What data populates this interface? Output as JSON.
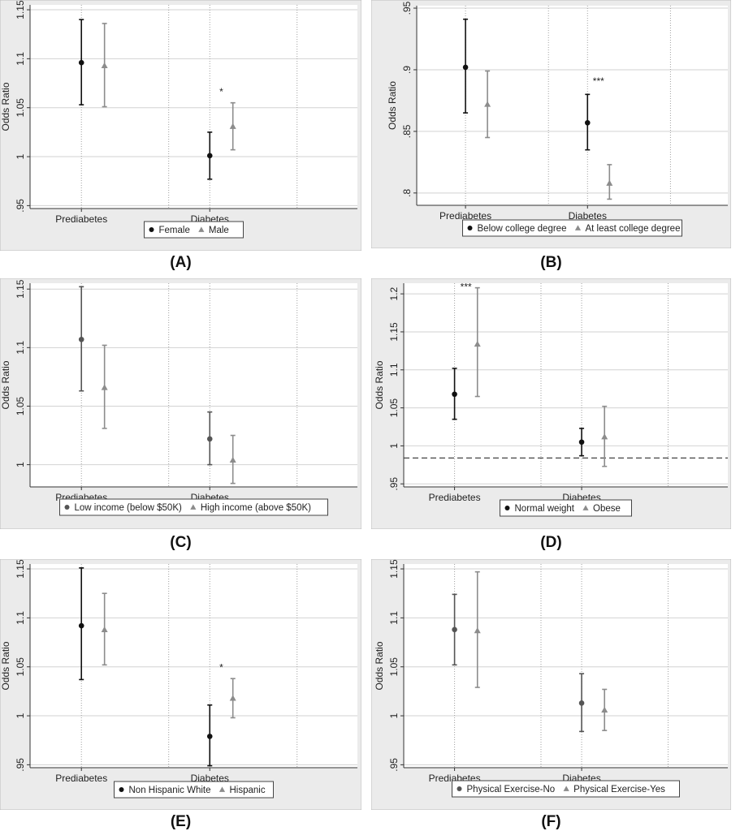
{
  "chart_data": [
    {
      "panel": "(A)",
      "type": "scatter",
      "subtype": "point-estimate-with-95ci",
      "ylabel": "Odds Ratio",
      "yticks": [
        0.95,
        1,
        1.05,
        1.1,
        1.15
      ],
      "ytick_labels": [
        ".95",
        "1",
        "1.05",
        "1.1",
        "1.15"
      ],
      "ylim": [
        0.947,
        1.155
      ],
      "categories": [
        "Prediabetes",
        "Diabetes"
      ],
      "series": [
        {
          "name": "Female",
          "marker": "circle",
          "color": "#111111",
          "values": [
            1.096,
            1.001
          ],
          "lower": [
            1.053,
            0.977
          ],
          "upper": [
            1.14,
            1.025
          ]
        },
        {
          "name": "Male",
          "marker": "triangle",
          "color": "#8c8c8c",
          "values": [
            1.093,
            1.031
          ],
          "lower": [
            1.051,
            1.007
          ],
          "upper": [
            1.136,
            1.055
          ]
        }
      ],
      "annotations": [
        {
          "category": "Diabetes",
          "text": "*",
          "y": 1.063
        }
      ],
      "reference_line": null
    },
    {
      "panel": "(B)",
      "type": "scatter",
      "subtype": "point-estimate-with-95ci",
      "ylabel": "Odds Ratio",
      "yticks": [
        0.8,
        0.85,
        0.9,
        0.95
      ],
      "ytick_labels": [
        ".8",
        ".85",
        ".9",
        ".95"
      ],
      "ylim": [
        0.79,
        0.952
      ],
      "categories": [
        "Prediabetes",
        "Diabetes"
      ],
      "series": [
        {
          "name": "Below college degree",
          "marker": "circle",
          "color": "#111111",
          "values": [
            0.902,
            0.857
          ],
          "lower": [
            0.865,
            0.835
          ],
          "upper": [
            0.941,
            0.88
          ]
        },
        {
          "name": "At least college degree",
          "marker": "triangle",
          "color": "#8c8c8c",
          "values": [
            0.872,
            0.808
          ],
          "lower": [
            0.845,
            0.795
          ],
          "upper": [
            0.899,
            0.823
          ]
        }
      ],
      "annotations": [
        {
          "category": "Diabetes",
          "text": "***",
          "y": 0.888
        }
      ],
      "reference_line": null
    },
    {
      "panel": "(C)",
      "type": "scatter",
      "subtype": "point-estimate-with-95ci",
      "ylabel": "Odds Ratio",
      "yticks": [
        1,
        1.05,
        1.1,
        1.15
      ],
      "ytick_labels": [
        "1",
        "1.05",
        "1.1",
        "1.15"
      ],
      "ylim": [
        0.981,
        1.155
      ],
      "categories": [
        "Prediabetes",
        "Diabetes"
      ],
      "series": [
        {
          "name": "Low income (below $50K)",
          "marker": "circle",
          "color": "#555555",
          "values": [
            1.107,
            1.022
          ],
          "lower": [
            1.063,
            1.0
          ],
          "upper": [
            1.152,
            1.045
          ]
        },
        {
          "name": "High income (above $50K)",
          "marker": "triangle",
          "color": "#8c8c8c",
          "values": [
            1.066,
            1.004
          ],
          "lower": [
            1.031,
            0.984
          ],
          "upper": [
            1.102,
            1.025
          ]
        }
      ],
      "annotations": [],
      "reference_line": null
    },
    {
      "panel": "(D)",
      "type": "scatter",
      "subtype": "point-estimate-with-95ci",
      "ylabel": "Odds Ratio",
      "yticks": [
        0.95,
        1,
        1.05,
        1.1,
        1.15,
        1.2
      ],
      "ytick_labels": [
        ".95",
        "1",
        "1.05",
        "1.1",
        "1.15",
        "1.2"
      ],
      "ylim": [
        0.946,
        1.214
      ],
      "categories": [
        "Prediabetes",
        "Diabetes"
      ],
      "series": [
        {
          "name": "Normal weight",
          "marker": "circle",
          "color": "#111111",
          "values": [
            1.068,
            1.005
          ],
          "lower": [
            1.035,
            0.987
          ],
          "upper": [
            1.102,
            1.023
          ]
        },
        {
          "name": "Obese",
          "marker": "triangle",
          "color": "#8c8c8c",
          "values": [
            1.134,
            1.012
          ],
          "lower": [
            1.065,
            0.973
          ],
          "upper": [
            1.208,
            1.052
          ]
        }
      ],
      "annotations": [
        {
          "category": "Prediabetes",
          "text": "***",
          "y": 1.205
        }
      ],
      "reference_line": {
        "y": 0.984,
        "style": "dashed"
      }
    },
    {
      "panel": "(E)",
      "type": "scatter",
      "subtype": "point-estimate-with-95ci",
      "ylabel": "Odds Ratio",
      "yticks": [
        0.95,
        1,
        1.05,
        1.1,
        1.15
      ],
      "ytick_labels": [
        ".95",
        "1",
        "1.05",
        "1.1",
        "1.15"
      ],
      "ylim": [
        0.947,
        1.155
      ],
      "categories": [
        "Prediabetes",
        "Diabetes"
      ],
      "series": [
        {
          "name": "Non Hispanic White",
          "marker": "circle",
          "color": "#111111",
          "values": [
            1.092,
            0.979
          ],
          "lower": [
            1.037,
            0.949
          ],
          "upper": [
            1.151,
            1.011
          ]
        },
        {
          "name": "Hispanic",
          "marker": "triangle",
          "color": "#8c8c8c",
          "values": [
            1.088,
            1.018
          ],
          "lower": [
            1.052,
            0.998
          ],
          "upper": [
            1.125,
            1.038
          ]
        }
      ],
      "annotations": [
        {
          "category": "Diabetes",
          "text": "*",
          "y": 1.046
        }
      ],
      "reference_line": null
    },
    {
      "panel": "(F)",
      "type": "scatter",
      "subtype": "point-estimate-with-95ci",
      "ylabel": "Odds Ratio",
      "yticks": [
        0.95,
        1,
        1.05,
        1.1,
        1.15
      ],
      "ytick_labels": [
        ".95",
        "1",
        "1.05",
        "1.1",
        "1.15"
      ],
      "ylim": [
        0.947,
        1.155
      ],
      "categories": [
        "Prediabetes",
        "Diabetes"
      ],
      "series": [
        {
          "name": "Physical Exercise-No",
          "marker": "circle",
          "color": "#555555",
          "values": [
            1.088,
            1.013
          ],
          "lower": [
            1.052,
            0.984
          ],
          "upper": [
            1.124,
            1.043
          ]
        },
        {
          "name": "Physical Exercise-Yes",
          "marker": "triangle",
          "color": "#8c8c8c",
          "values": [
            1.087,
            1.006
          ],
          "lower": [
            1.029,
            0.985
          ],
          "upper": [
            1.147,
            1.027
          ]
        }
      ],
      "annotations": [],
      "reference_line": null
    }
  ],
  "colors": {
    "panel_background": "#ebebeb",
    "plot_background": "#ffffff",
    "gridline": "#d2d2d2",
    "separator": "#a0a0a0",
    "axis": "#333333"
  }
}
